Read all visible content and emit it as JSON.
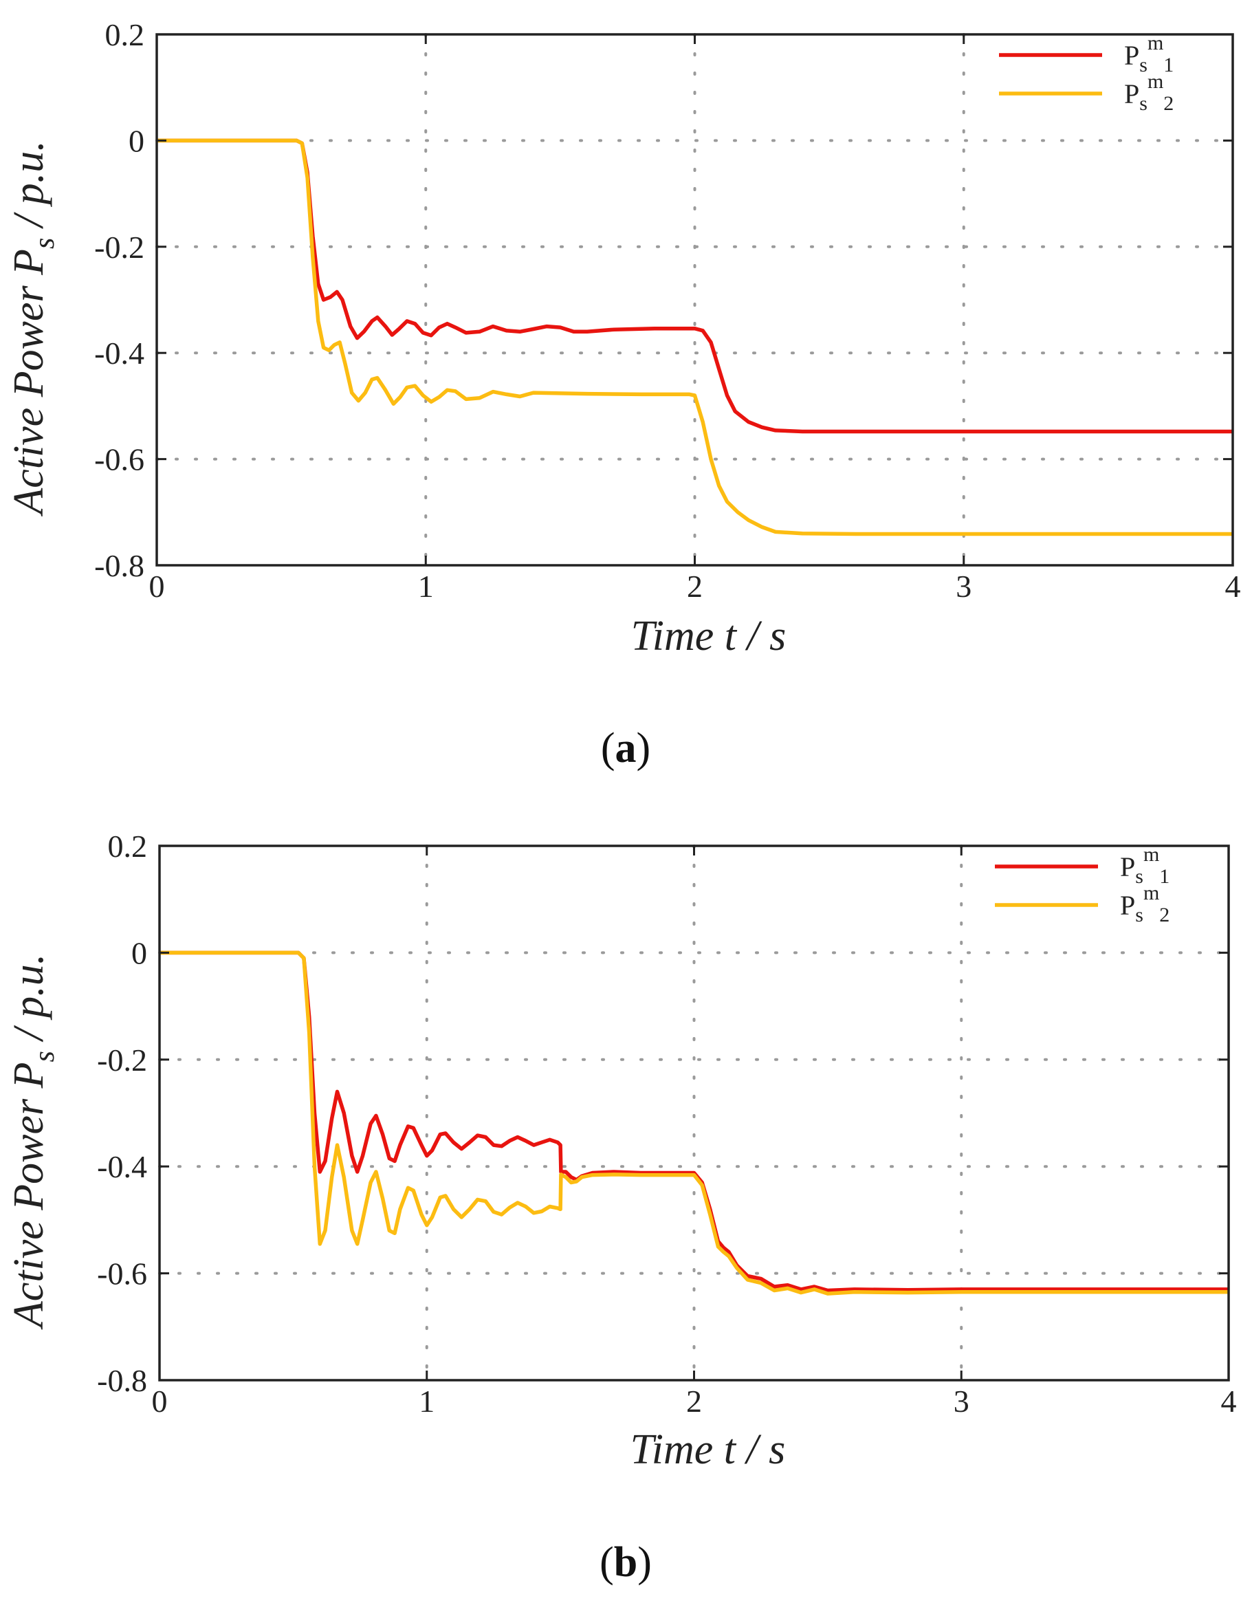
{
  "chart_data": [
    {
      "type": "line",
      "panel_label": "a",
      "xlabel": "Time t / s",
      "ylabel": "Active Power P",
      "ylabel_sub": "s",
      "ylabel_unit": " / p.u.",
      "xlim": [
        0,
        4
      ],
      "ylim": [
        -0.8,
        0.2
      ],
      "xticks": [
        "0",
        "1",
        "2",
        "3",
        "4"
      ],
      "yticks": [
        "0.2",
        "0",
        "-0.2",
        "-0.4",
        "-0.6",
        "-0.8"
      ],
      "grid": true,
      "legend_position": "top-right",
      "series": [
        {
          "name": "Ps m 1",
          "legend": {
            "base": "P",
            "sub1": "s",
            "sup": "m",
            "sub2": "1"
          },
          "color": "#e8140f",
          "points": [
            [
              0,
              0
            ],
            [
              0.52,
              0
            ],
            [
              0.54,
              -0.005
            ],
            [
              0.56,
              -0.06
            ],
            [
              0.58,
              -0.18
            ],
            [
              0.6,
              -0.27
            ],
            [
              0.62,
              -0.3
            ],
            [
              0.645,
              -0.295
            ],
            [
              0.67,
              -0.285
            ],
            [
              0.69,
              -0.3
            ],
            [
              0.72,
              -0.35
            ],
            [
              0.745,
              -0.372
            ],
            [
              0.77,
              -0.36
            ],
            [
              0.8,
              -0.34
            ],
            [
              0.82,
              -0.333
            ],
            [
              0.85,
              -0.35
            ],
            [
              0.875,
              -0.366
            ],
            [
              0.9,
              -0.355
            ],
            [
              0.93,
              -0.34
            ],
            [
              0.96,
              -0.345
            ],
            [
              0.99,
              -0.362
            ],
            [
              1.02,
              -0.367
            ],
            [
              1.05,
              -0.352
            ],
            [
              1.08,
              -0.345
            ],
            [
              1.11,
              -0.352
            ],
            [
              1.15,
              -0.362
            ],
            [
              1.2,
              -0.36
            ],
            [
              1.25,
              -0.35
            ],
            [
              1.3,
              -0.358
            ],
            [
              1.35,
              -0.36
            ],
            [
              1.4,
              -0.355
            ],
            [
              1.45,
              -0.35
            ],
            [
              1.5,
              -0.352
            ],
            [
              1.55,
              -0.36
            ],
            [
              1.6,
              -0.36
            ],
            [
              1.7,
              -0.356
            ],
            [
              1.85,
              -0.354
            ],
            [
              2.0,
              -0.354
            ],
            [
              2.03,
              -0.358
            ],
            [
              2.06,
              -0.38
            ],
            [
              2.09,
              -0.43
            ],
            [
              2.12,
              -0.48
            ],
            [
              2.15,
              -0.51
            ],
            [
              2.2,
              -0.53
            ],
            [
              2.25,
              -0.54
            ],
            [
              2.3,
              -0.546
            ],
            [
              2.4,
              -0.548
            ],
            [
              2.6,
              -0.548
            ],
            [
              3.0,
              -0.548
            ],
            [
              4.0,
              -0.548
            ]
          ]
        },
        {
          "name": "Ps m 2",
          "legend": {
            "base": "P",
            "sub1": "s",
            "sup": "m",
            "sub2": "2"
          },
          "color": "#fcbc12",
          "points": [
            [
              0,
              0
            ],
            [
              0.52,
              0
            ],
            [
              0.54,
              -0.005
            ],
            [
              0.56,
              -0.07
            ],
            [
              0.58,
              -0.22
            ],
            [
              0.6,
              -0.34
            ],
            [
              0.62,
              -0.39
            ],
            [
              0.64,
              -0.395
            ],
            [
              0.66,
              -0.385
            ],
            [
              0.68,
              -0.38
            ],
            [
              0.7,
              -0.42
            ],
            [
              0.725,
              -0.475
            ],
            [
              0.75,
              -0.49
            ],
            [
              0.775,
              -0.475
            ],
            [
              0.8,
              -0.45
            ],
            [
              0.82,
              -0.447
            ],
            [
              0.85,
              -0.47
            ],
            [
              0.88,
              -0.496
            ],
            [
              0.905,
              -0.483
            ],
            [
              0.93,
              -0.465
            ],
            [
              0.96,
              -0.462
            ],
            [
              0.99,
              -0.48
            ],
            [
              1.02,
              -0.492
            ],
            [
              1.05,
              -0.483
            ],
            [
              1.08,
              -0.47
            ],
            [
              1.11,
              -0.472
            ],
            [
              1.15,
              -0.487
            ],
            [
              1.2,
              -0.485
            ],
            [
              1.25,
              -0.473
            ],
            [
              1.3,
              -0.478
            ],
            [
              1.35,
              -0.482
            ],
            [
              1.4,
              -0.475
            ],
            [
              1.5,
              -0.476
            ],
            [
              1.6,
              -0.477
            ],
            [
              1.8,
              -0.478
            ],
            [
              1.98,
              -0.478
            ],
            [
              2.0,
              -0.48
            ],
            [
              2.03,
              -0.53
            ],
            [
              2.06,
              -0.6
            ],
            [
              2.09,
              -0.65
            ],
            [
              2.12,
              -0.68
            ],
            [
              2.16,
              -0.7
            ],
            [
              2.2,
              -0.715
            ],
            [
              2.25,
              -0.728
            ],
            [
              2.3,
              -0.737
            ],
            [
              2.4,
              -0.74
            ],
            [
              2.6,
              -0.741
            ],
            [
              3.0,
              -0.741
            ],
            [
              4.0,
              -0.741
            ]
          ]
        }
      ]
    },
    {
      "type": "line",
      "panel_label": "b",
      "xlabel": "Time t / s",
      "ylabel": "Active Power P",
      "ylabel_sub": "s",
      "ylabel_unit": " / p.u.",
      "xlim": [
        0,
        4
      ],
      "ylim": [
        -0.8,
        0.2
      ],
      "xticks": [
        "0",
        "1",
        "2",
        "3",
        "4"
      ],
      "yticks": [
        "0.2",
        "0",
        "-0.2",
        "-0.4",
        "-0.6",
        "-0.8"
      ],
      "grid": true,
      "legend_position": "top-right",
      "series": [
        {
          "name": "Ps m 1",
          "legend": {
            "base": "P",
            "sub1": "s",
            "sup": "m",
            "sub2": "1"
          },
          "color": "#e8140f",
          "points": [
            [
              0,
              0
            ],
            [
              0.52,
              0
            ],
            [
              0.54,
              -0.01
            ],
            [
              0.56,
              -0.12
            ],
            [
              0.58,
              -0.3
            ],
            [
              0.6,
              -0.41
            ],
            [
              0.62,
              -0.39
            ],
            [
              0.645,
              -0.31
            ],
            [
              0.665,
              -0.26
            ],
            [
              0.69,
              -0.3
            ],
            [
              0.72,
              -0.38
            ],
            [
              0.74,
              -0.41
            ],
            [
              0.76,
              -0.38
            ],
            [
              0.79,
              -0.32
            ],
            [
              0.81,
              -0.305
            ],
            [
              0.835,
              -0.34
            ],
            [
              0.86,
              -0.385
            ],
            [
              0.88,
              -0.39
            ],
            [
              0.9,
              -0.36
            ],
            [
              0.93,
              -0.325
            ],
            [
              0.95,
              -0.328
            ],
            [
              0.98,
              -0.36
            ],
            [
              1.0,
              -0.38
            ],
            [
              1.02,
              -0.37
            ],
            [
              1.05,
              -0.34
            ],
            [
              1.07,
              -0.338
            ],
            [
              1.1,
              -0.355
            ],
            [
              1.13,
              -0.367
            ],
            [
              1.16,
              -0.355
            ],
            [
              1.19,
              -0.342
            ],
            [
              1.22,
              -0.345
            ],
            [
              1.25,
              -0.36
            ],
            [
              1.28,
              -0.362
            ],
            [
              1.31,
              -0.352
            ],
            [
              1.34,
              -0.345
            ],
            [
              1.37,
              -0.352
            ],
            [
              1.4,
              -0.36
            ],
            [
              1.43,
              -0.355
            ],
            [
              1.46,
              -0.35
            ],
            [
              1.49,
              -0.355
            ],
            [
              1.5,
              -0.36
            ],
            [
              1.502,
              -0.41
            ],
            [
              1.52,
              -0.41
            ],
            [
              1.54,
              -0.42
            ],
            [
              1.56,
              -0.425
            ],
            [
              1.58,
              -0.418
            ],
            [
              1.62,
              -0.412
            ],
            [
              1.7,
              -0.41
            ],
            [
              1.8,
              -0.412
            ],
            [
              1.9,
              -0.412
            ],
            [
              2.0,
              -0.412
            ],
            [
              2.03,
              -0.43
            ],
            [
              2.06,
              -0.48
            ],
            [
              2.09,
              -0.54
            ],
            [
              2.11,
              -0.552
            ],
            [
              2.13,
              -0.56
            ],
            [
              2.16,
              -0.585
            ],
            [
              2.2,
              -0.605
            ],
            [
              2.25,
              -0.61
            ],
            [
              2.3,
              -0.625
            ],
            [
              2.35,
              -0.622
            ],
            [
              2.4,
              -0.63
            ],
            [
              2.45,
              -0.625
            ],
            [
              2.5,
              -0.632
            ],
            [
              2.6,
              -0.63
            ],
            [
              2.8,
              -0.631
            ],
            [
              3.0,
              -0.63
            ],
            [
              4.0,
              -0.63
            ]
          ]
        },
        {
          "name": "Ps m 2",
          "legend": {
            "base": "P",
            "sub1": "s",
            "sup": "m",
            "sub2": "2"
          },
          "color": "#fcbc12",
          "points": [
            [
              0,
              0
            ],
            [
              0.52,
              0
            ],
            [
              0.54,
              -0.01
            ],
            [
              0.56,
              -0.15
            ],
            [
              0.58,
              -0.4
            ],
            [
              0.6,
              -0.545
            ],
            [
              0.62,
              -0.52
            ],
            [
              0.645,
              -0.42
            ],
            [
              0.665,
              -0.36
            ],
            [
              0.69,
              -0.42
            ],
            [
              0.72,
              -0.52
            ],
            [
              0.74,
              -0.545
            ],
            [
              0.76,
              -0.5
            ],
            [
              0.79,
              -0.43
            ],
            [
              0.81,
              -0.41
            ],
            [
              0.835,
              -0.46
            ],
            [
              0.86,
              -0.52
            ],
            [
              0.88,
              -0.525
            ],
            [
              0.9,
              -0.48
            ],
            [
              0.93,
              -0.44
            ],
            [
              0.95,
              -0.445
            ],
            [
              0.98,
              -0.49
            ],
            [
              1.0,
              -0.51
            ],
            [
              1.02,
              -0.495
            ],
            [
              1.05,
              -0.458
            ],
            [
              1.07,
              -0.455
            ],
            [
              1.1,
              -0.48
            ],
            [
              1.13,
              -0.495
            ],
            [
              1.16,
              -0.48
            ],
            [
              1.19,
              -0.462
            ],
            [
              1.22,
              -0.465
            ],
            [
              1.25,
              -0.485
            ],
            [
              1.28,
              -0.49
            ],
            [
              1.31,
              -0.477
            ],
            [
              1.34,
              -0.468
            ],
            [
              1.37,
              -0.475
            ],
            [
              1.4,
              -0.487
            ],
            [
              1.43,
              -0.484
            ],
            [
              1.46,
              -0.475
            ],
            [
              1.49,
              -0.478
            ],
            [
              1.5,
              -0.48
            ],
            [
              1.502,
              -0.415
            ],
            [
              1.52,
              -0.42
            ],
            [
              1.54,
              -0.43
            ],
            [
              1.56,
              -0.428
            ],
            [
              1.58,
              -0.42
            ],
            [
              1.62,
              -0.416
            ],
            [
              1.7,
              -0.415
            ],
            [
              1.8,
              -0.416
            ],
            [
              1.9,
              -0.416
            ],
            [
              2.0,
              -0.416
            ],
            [
              2.03,
              -0.435
            ],
            [
              2.06,
              -0.49
            ],
            [
              2.09,
              -0.55
            ],
            [
              2.11,
              -0.56
            ],
            [
              2.13,
              -0.568
            ],
            [
              2.16,
              -0.59
            ],
            [
              2.2,
              -0.612
            ],
            [
              2.25,
              -0.618
            ],
            [
              2.3,
              -0.632
            ],
            [
              2.35,
              -0.628
            ],
            [
              2.4,
              -0.636
            ],
            [
              2.45,
              -0.63
            ],
            [
              2.5,
              -0.638
            ],
            [
              2.6,
              -0.635
            ],
            [
              2.8,
              -0.636
            ],
            [
              3.0,
              -0.635
            ],
            [
              4.0,
              -0.635
            ]
          ]
        }
      ]
    }
  ]
}
